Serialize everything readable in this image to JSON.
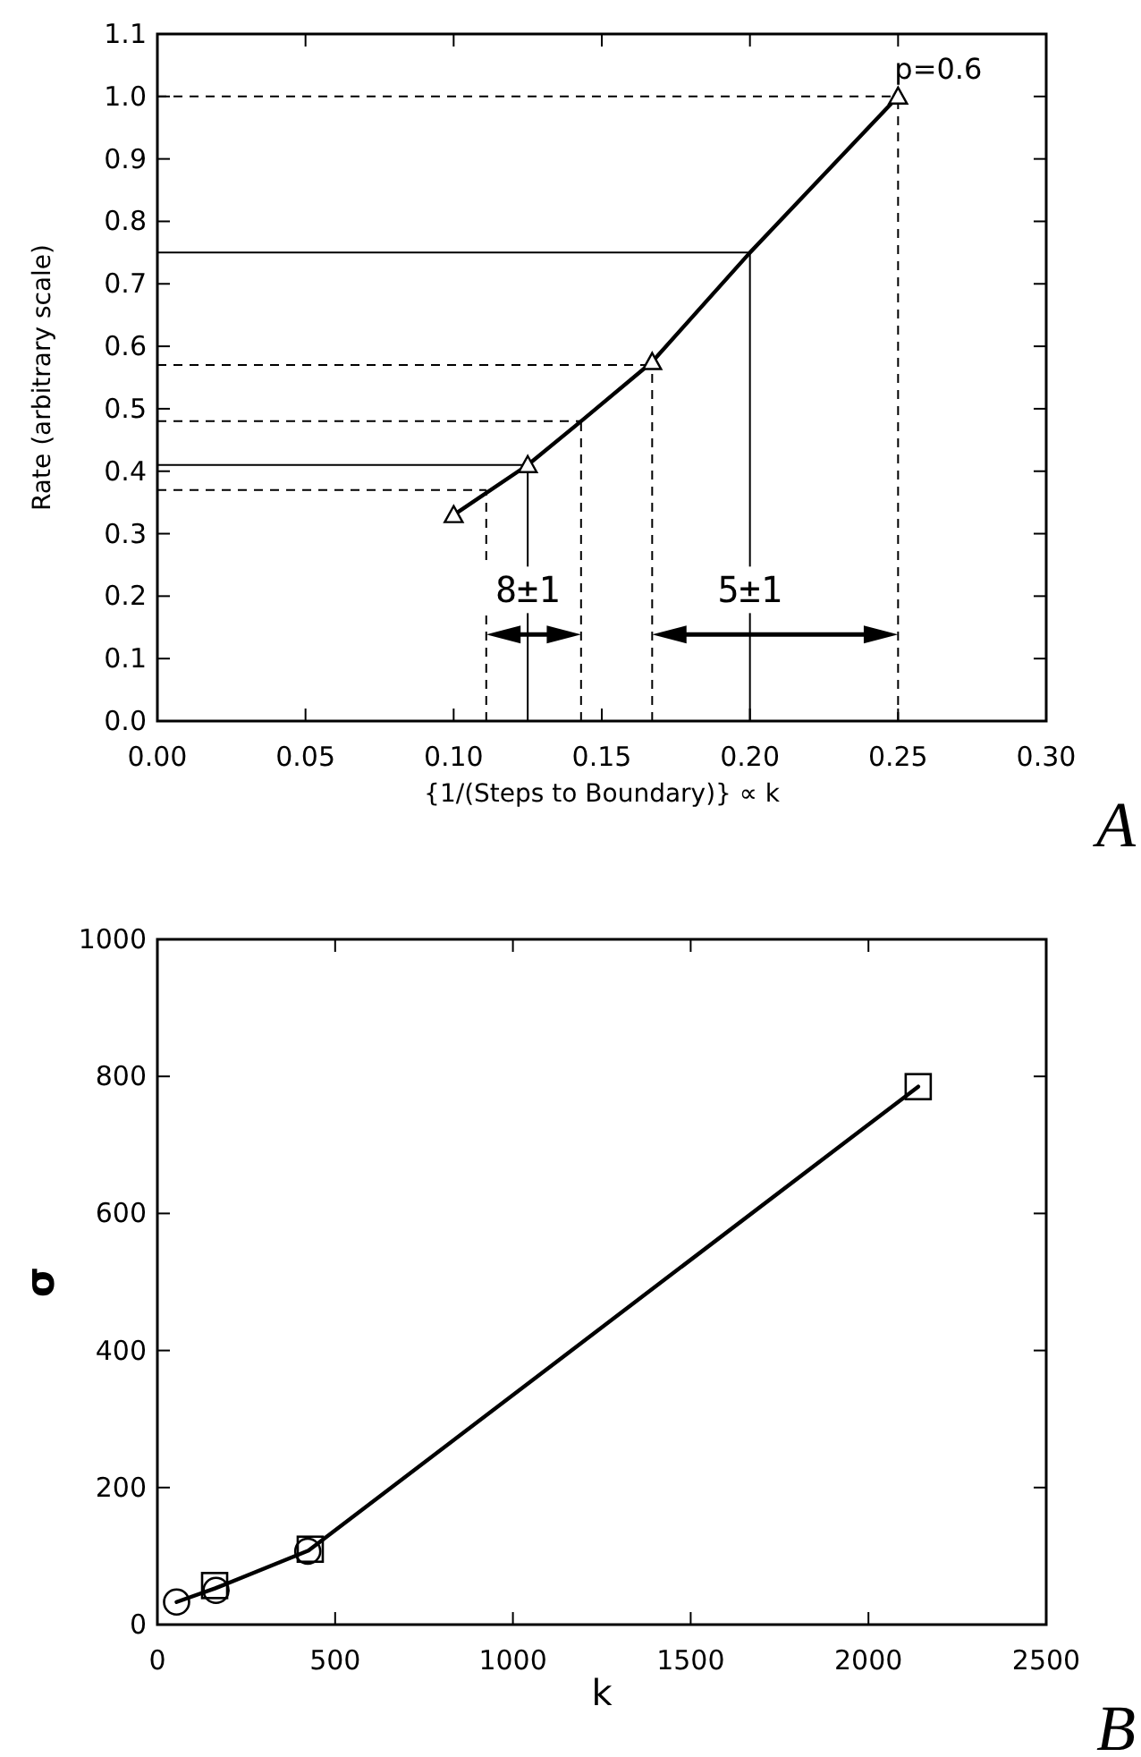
{
  "chart_data": [
    {
      "type": "line",
      "xlabel": "{1/(Steps to Boundary)} ∝ k",
      "ylabel": "Rate (arbitrary scale)",
      "xlim": [
        0,
        0.3
      ],
      "xticks": [
        {
          "value": 0,
          "label": "0.00"
        },
        0.05,
        {
          "value": 0.1,
          "label": "0.10"
        },
        0.15,
        {
          "value": 0.2,
          "label": "0.20"
        },
        0.25,
        {
          "value": 0.3,
          "label": "0.30"
        }
      ],
      "ylim": [
        0,
        1.1
      ],
      "yticks": [
        {
          "value": 0,
          "label": "0.0"
        },
        0.1,
        0.2,
        0.3,
        0.4,
        0.5,
        0.6,
        0.7,
        0.8,
        0.9,
        {
          "value": 1,
          "label": "1.0"
        },
        1.1
      ],
      "grid": false,
      "series": [
        {
          "color": "#000000",
          "marker": "none",
          "x": [
            0.1,
            0.125,
            0.143,
            0.167,
            0.2,
            0.25
          ],
          "values": [
            0.33,
            0.41,
            0.48,
            0.575,
            0.75,
            1.0
          ]
        },
        {
          "type": "scatter",
          "color": "#000000",
          "marker": "triangle",
          "x": [
            0.1,
            0.125,
            0.167,
            0.25
          ],
          "values": [
            0.33,
            0.41,
            0.575,
            1.0
          ]
        }
      ],
      "ref_lines": [
        {
          "axis": "y",
          "value": 0.37,
          "line_style": "dashed",
          "color": "#000000"
        },
        {
          "axis": "y",
          "value": 0.41,
          "line_style": "solid",
          "color": "#000000"
        },
        {
          "axis": "y",
          "value": 0.48,
          "line_style": "dashed",
          "color": "#000000"
        },
        {
          "axis": "y",
          "value": 0.57,
          "line_style": "dashed",
          "color": "#000000"
        },
        {
          "axis": "y",
          "value": 0.75,
          "line_style": "solid",
          "color": "#000000"
        },
        {
          "axis": "y",
          "value": 1.0,
          "line_style": "dashed",
          "color": "#000000"
        },
        {
          "axis": "x",
          "value": 0.111,
          "line_style": "dashed",
          "color": "#000000"
        },
        {
          "axis": "x",
          "value": 0.125,
          "line_style": "solid",
          "color": "#000000"
        },
        {
          "axis": "x",
          "value": 0.143,
          "line_style": "dashed",
          "color": "#000000"
        },
        {
          "axis": "x",
          "value": 0.167,
          "line_style": "dashed",
          "color": "#000000"
        },
        {
          "axis": "x",
          "value": 0.2,
          "line_style": "solid",
          "color": "#000000"
        },
        {
          "axis": "x",
          "value": 0.25,
          "line_style": "dashed",
          "color": "#000000"
        }
      ],
      "annotations": [
        {
          "text": "p=0.6",
          "x": 0.25,
          "y": 1.0
        },
        {
          "text": "8±1",
          "x": 0.125,
          "y": 0.19
        },
        {
          "text": "5±1",
          "x": 0.2,
          "y": 0.19
        },
        "A"
      ]
    },
    {
      "type": "line",
      "xlabel": "k",
      "ylabel": "σ",
      "xlim": [
        0,
        2500
      ],
      "xticks": [
        0,
        500,
        1000,
        1500,
        2000,
        2500
      ],
      "ylim": [
        0,
        1000
      ],
      "yticks": [
        0,
        200,
        400,
        600,
        800,
        1000
      ],
      "grid": false,
      "series": [
        {
          "color": "#000000",
          "marker": "none",
          "x": [
            54,
            163,
            425,
            2140
          ],
          "values": [
            33,
            53,
            108,
            785
          ]
        },
        {
          "type": "scatter",
          "color": "#000000",
          "marker": "circle",
          "x": [
            54,
            165,
            423
          ],
          "values": [
            33,
            50,
            107
          ]
        },
        {
          "type": "scatter",
          "color": "#000000",
          "marker": "square",
          "x": [
            161,
            430,
            2140
          ],
          "values": [
            57,
            110,
            785
          ]
        }
      ],
      "annotations": [
        "B"
      ]
    }
  ]
}
